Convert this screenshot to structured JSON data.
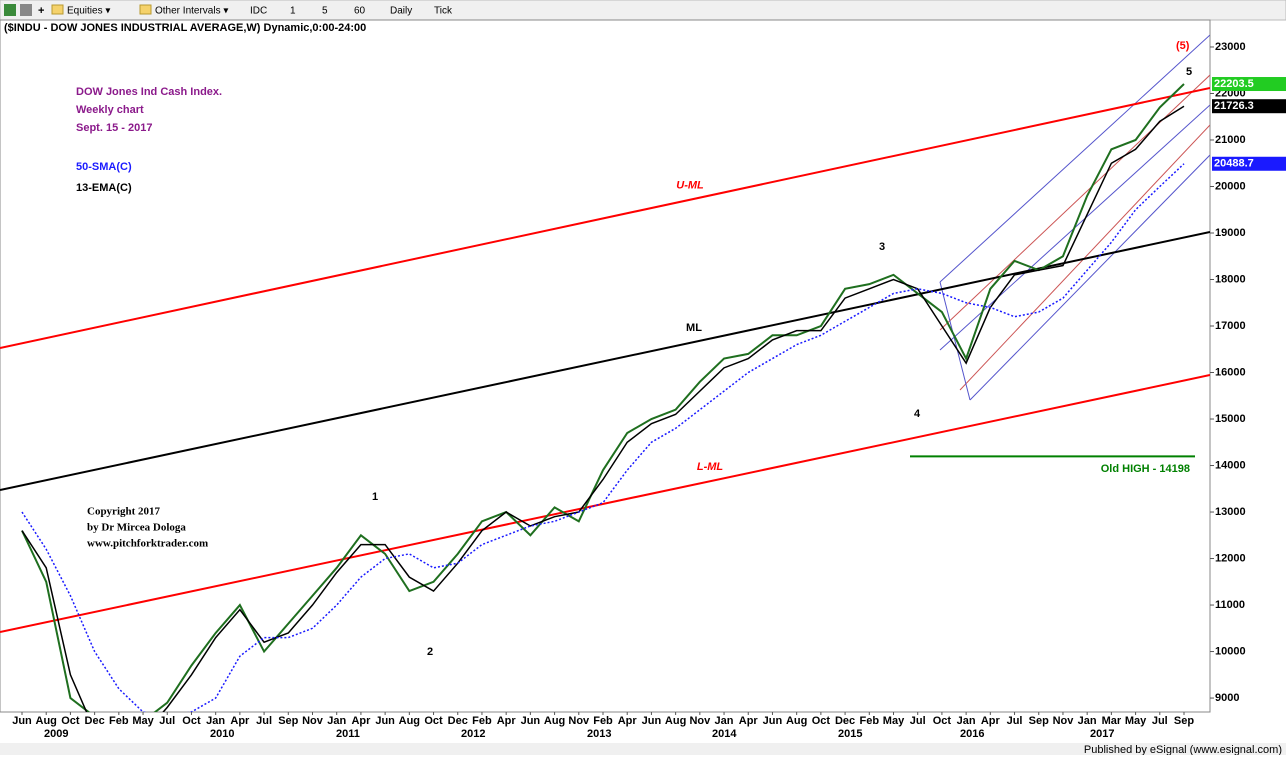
{
  "toolbar": {
    "items": [
      "Equities ▾",
      "Other Intervals ▾",
      "IDC",
      "1",
      "5",
      "60",
      "Daily",
      "Tick"
    ]
  },
  "chart_data": {
    "type": "line",
    "title": "($INDU - DOW JONES INDUSTRIAL AVERAGE,W) Dynamic,0:00-24:00",
    "notes": [
      "DOW Jones Ind Cash Index.",
      "Weekly chart",
      "Sept. 15 - 2017"
    ],
    "copyright": [
      "Copyright 2017",
      "by Dr Mircea Dologa",
      "www.pitchforktrader.com"
    ],
    "categories": [
      "Jun",
      "Aug",
      "Oct",
      "Dec",
      "Feb",
      "May",
      "Jul",
      "Oct",
      "Jan",
      "Apr",
      "Jul",
      "Sep",
      "Nov",
      "Jan",
      "Apr",
      "Jun",
      "Aug",
      "Oct",
      "Dec",
      "Feb",
      "Apr",
      "Jun",
      "Aug",
      "Nov",
      "Feb",
      "Apr",
      "Jun",
      "Aug",
      "Nov",
      "Jan",
      "Apr",
      "Jun",
      "Aug",
      "Oct",
      "Dec",
      "Feb",
      "May",
      "Jul",
      "Oct",
      "Jan",
      "Apr",
      "Jul",
      "Sep",
      "Nov",
      "Jan",
      "Mar",
      "May",
      "Jul",
      "Sep"
    ],
    "years": [
      "2009",
      "2010",
      "2011",
      "2012",
      "2013",
      "2014",
      "2015",
      "2016",
      "2017"
    ],
    "series": [
      {
        "name": "DOW",
        "color": "#1f6f1f",
        "values": [
          12600,
          11500,
          9000,
          8600,
          7000,
          8500,
          8900,
          9700,
          10400,
          11000,
          10000,
          10600,
          11200,
          11800,
          12500,
          12100,
          11300,
          11500,
          12100,
          12800,
          13000,
          12500,
          13100,
          12800,
          13900,
          14700,
          15000,
          15200,
          15800,
          16300,
          16400,
          16800,
          16800,
          17000,
          17800,
          17900,
          18100,
          17700,
          17300,
          16300,
          17800,
          18400,
          18200,
          18500,
          19800,
          20800,
          21000,
          21700,
          22203.5
        ]
      },
      {
        "name": "13-EMA(C)",
        "color": "#000000",
        "values": [
          12600,
          11800,
          9500,
          8300,
          7600,
          8200,
          8800,
          9500,
          10300,
          10900,
          10200,
          10400,
          11000,
          11700,
          12300,
          12300,
          11600,
          11300,
          11900,
          12600,
          13000,
          12700,
          12900,
          13000,
          13700,
          14500,
          14900,
          15100,
          15600,
          16100,
          16300,
          16700,
          16900,
          16900,
          17600,
          17800,
          18000,
          17800,
          17000,
          16200,
          17400,
          18100,
          18200,
          18300,
          19400,
          20500,
          20800,
          21400,
          21726.3
        ]
      },
      {
        "name": "50-SMA(C)",
        "color": "#1a1aff",
        "values": [
          13000,
          12200,
          11200,
          10000,
          9200,
          8700,
          8600,
          8700,
          9000,
          9900,
          10300,
          10300,
          10500,
          11000,
          11600,
          12000,
          12100,
          11800,
          11900,
          12300,
          12500,
          12700,
          12800,
          13000,
          13200,
          13900,
          14500,
          14800,
          15200,
          15600,
          16000,
          16300,
          16600,
          16800,
          17100,
          17400,
          17700,
          17800,
          17700,
          17500,
          17400,
          17200,
          17300,
          17600,
          18200,
          18800,
          19500,
          20000,
          20488.7
        ]
      }
    ],
    "pitchfork": [
      {
        "label": "U-ML",
        "color": "#ff0000",
        "start": 16527,
        "end": 22118
      },
      {
        "label": "ML",
        "color": "#000000",
        "start": 13473,
        "end": 19022
      },
      {
        "label": "L-ML",
        "color": "#ff0000",
        "start": 10419,
        "end": 15946
      }
    ],
    "old_high": {
      "label": "Old HIGH - 14198",
      "value": 14198,
      "color": "#008000"
    },
    "waves": [
      "1",
      "2",
      "3",
      "4",
      "5",
      "(5)"
    ],
    "ylim": [
      8700,
      23580
    ],
    "yticks": [
      9000,
      10000,
      11000,
      12000,
      13000,
      14000,
      15000,
      16000,
      17000,
      18000,
      19000,
      20000,
      21000,
      22000,
      23000
    ]
  },
  "footer": "Published by eSignal (www.esignal.com)"
}
